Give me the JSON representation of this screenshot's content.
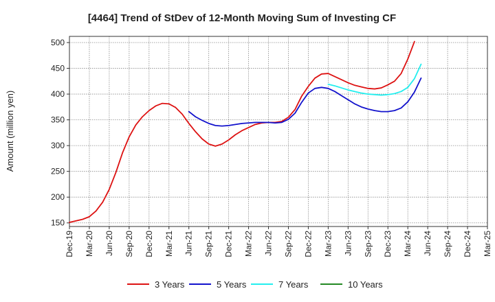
{
  "chart_data": {
    "type": "line",
    "title": "[4464]  Trend of StDev of 12-Month Moving Sum of Investing CF",
    "xlabel": "",
    "ylabel": "Amount (million yen)",
    "ylim": [
      143,
      512
    ],
    "yticks": [
      150,
      200,
      250,
      300,
      350,
      400,
      450,
      500
    ],
    "x_categories": [
      "Dec-19",
      "Mar-20",
      "Jun-20",
      "Sep-20",
      "Dec-20",
      "Mar-21",
      "Jun-21",
      "Sep-21",
      "Dec-21",
      "Mar-22",
      "Jun-22",
      "Sep-22",
      "Dec-22",
      "Mar-23",
      "Jun-23",
      "Sep-23",
      "Dec-23",
      "Mar-24",
      "Jun-24",
      "Sep-24",
      "Dec-24",
      "Mar-25"
    ],
    "series": [
      {
        "name": "3 Years",
        "color": "#dd1111",
        "start_index": 0,
        "values": [
          151,
          154,
          157,
          162,
          173,
          190,
          215,
          248,
          286,
          317,
          340,
          356,
          368,
          377,
          382,
          381,
          374,
          361,
          343,
          327,
          313,
          303,
          299,
          303,
          311,
          321,
          329,
          335,
          341,
          344,
          345,
          345,
          347,
          355,
          370,
          396,
          415,
          431,
          439,
          440,
          434,
          428,
          422,
          417,
          414,
          411,
          410,
          412,
          418,
          425,
          440,
          468,
          502
        ]
      },
      {
        "name": "5 Years",
        "color": "#1111cc",
        "start_index": 18,
        "values": [
          366,
          356,
          349,
          343,
          339,
          338,
          339,
          341,
          343,
          344,
          345,
          345,
          345,
          344,
          345,
          351,
          363,
          384,
          402,
          411,
          413,
          411,
          405,
          397,
          389,
          381,
          375,
          371,
          368,
          366,
          366,
          368,
          373,
          385,
          404,
          431
        ]
      },
      {
        "name": "7 Years",
        "color": "#22eeee",
        "start_index": 39,
        "values": [
          419,
          416,
          412,
          408,
          405,
          402,
          400,
          399,
          398,
          399,
          401,
          405,
          413,
          430,
          458
        ]
      },
      {
        "name": "10 Years",
        "color": "#228822",
        "start_index": 0,
        "values": []
      }
    ]
  }
}
